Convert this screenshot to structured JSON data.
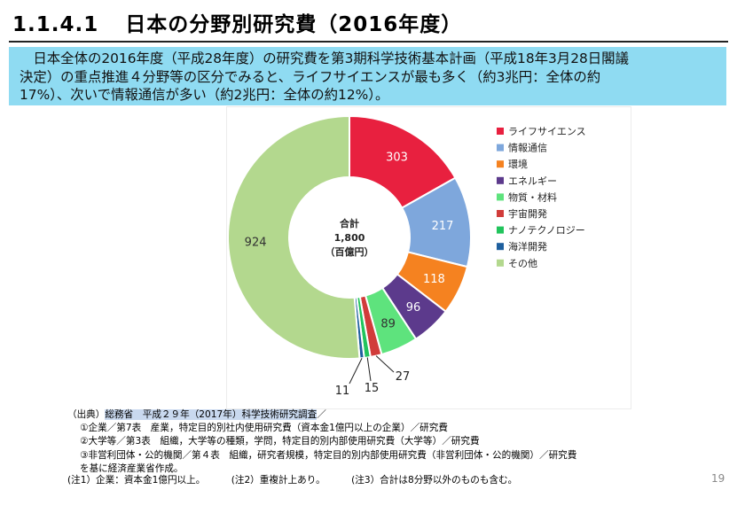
{
  "page": {
    "title_number": "1.1.4.1",
    "title_text": "日本の分野別研究費（2016年度）",
    "summary_lines": [
      "　日本全体の2016年度（平成28年度）の研究費を第3期科学技術基本計画（平成18年3月28日閣議",
      "決定）の重点推進４分野等の区分でみると、ライフサイエンスが最も多く（約3兆円：全体の約",
      "17%）、次いで情報通信が多い（約2兆円：全体の約12%）。"
    ],
    "source_label": "（出典）",
    "source_highlight": "総務省　平成２９年（2017年）科学技術研究調査",
    "source_tail": "／",
    "source_lines": [
      "①企業／第7表　産業，特定目的別社内使用研究費（資本金1億円以上の企業）／研究費",
      "②大学等／第3表　組織，大学等の種類，学問，特定目的別内部使用研究費（大学等）／研究費",
      "③非営利団体・公的機関／第４表　組織，研究者規模，特定目的別内部使用研究費（非営利団体・公的機関）／研究費",
      "を基に経済産業省作成。"
    ],
    "notes": [
      "(注1）企業：資本金1億円以上。",
      "(注2）重複計上あり。",
      "(注3）合計は8分野以外のものも含む。"
    ],
    "page_number": "19"
  },
  "chart_data": {
    "type": "donut",
    "center_label": [
      "合計",
      "1,800",
      "（百億円）"
    ],
    "legend_position": "right",
    "categories": [
      "ライフサイエンス",
      "情報通信",
      "環境",
      "エネルギー",
      "物質・材料",
      "宇宙開発",
      "ナノテクノロジー",
      "海洋開発",
      "その他"
    ],
    "values": [
      303,
      217,
      118,
      96,
      89,
      27,
      15,
      11,
      924
    ],
    "value_labels": [
      "303",
      "217",
      "118",
      "96",
      "89",
      "27",
      "15",
      "11",
      "924"
    ],
    "colors": [
      "#e8203f",
      "#7ea7dc",
      "#f58220",
      "#5c3a8c",
      "#5ee37d",
      "#d13c3a",
      "#21c45c",
      "#1e5f9e",
      "#b3d88e"
    ]
  }
}
